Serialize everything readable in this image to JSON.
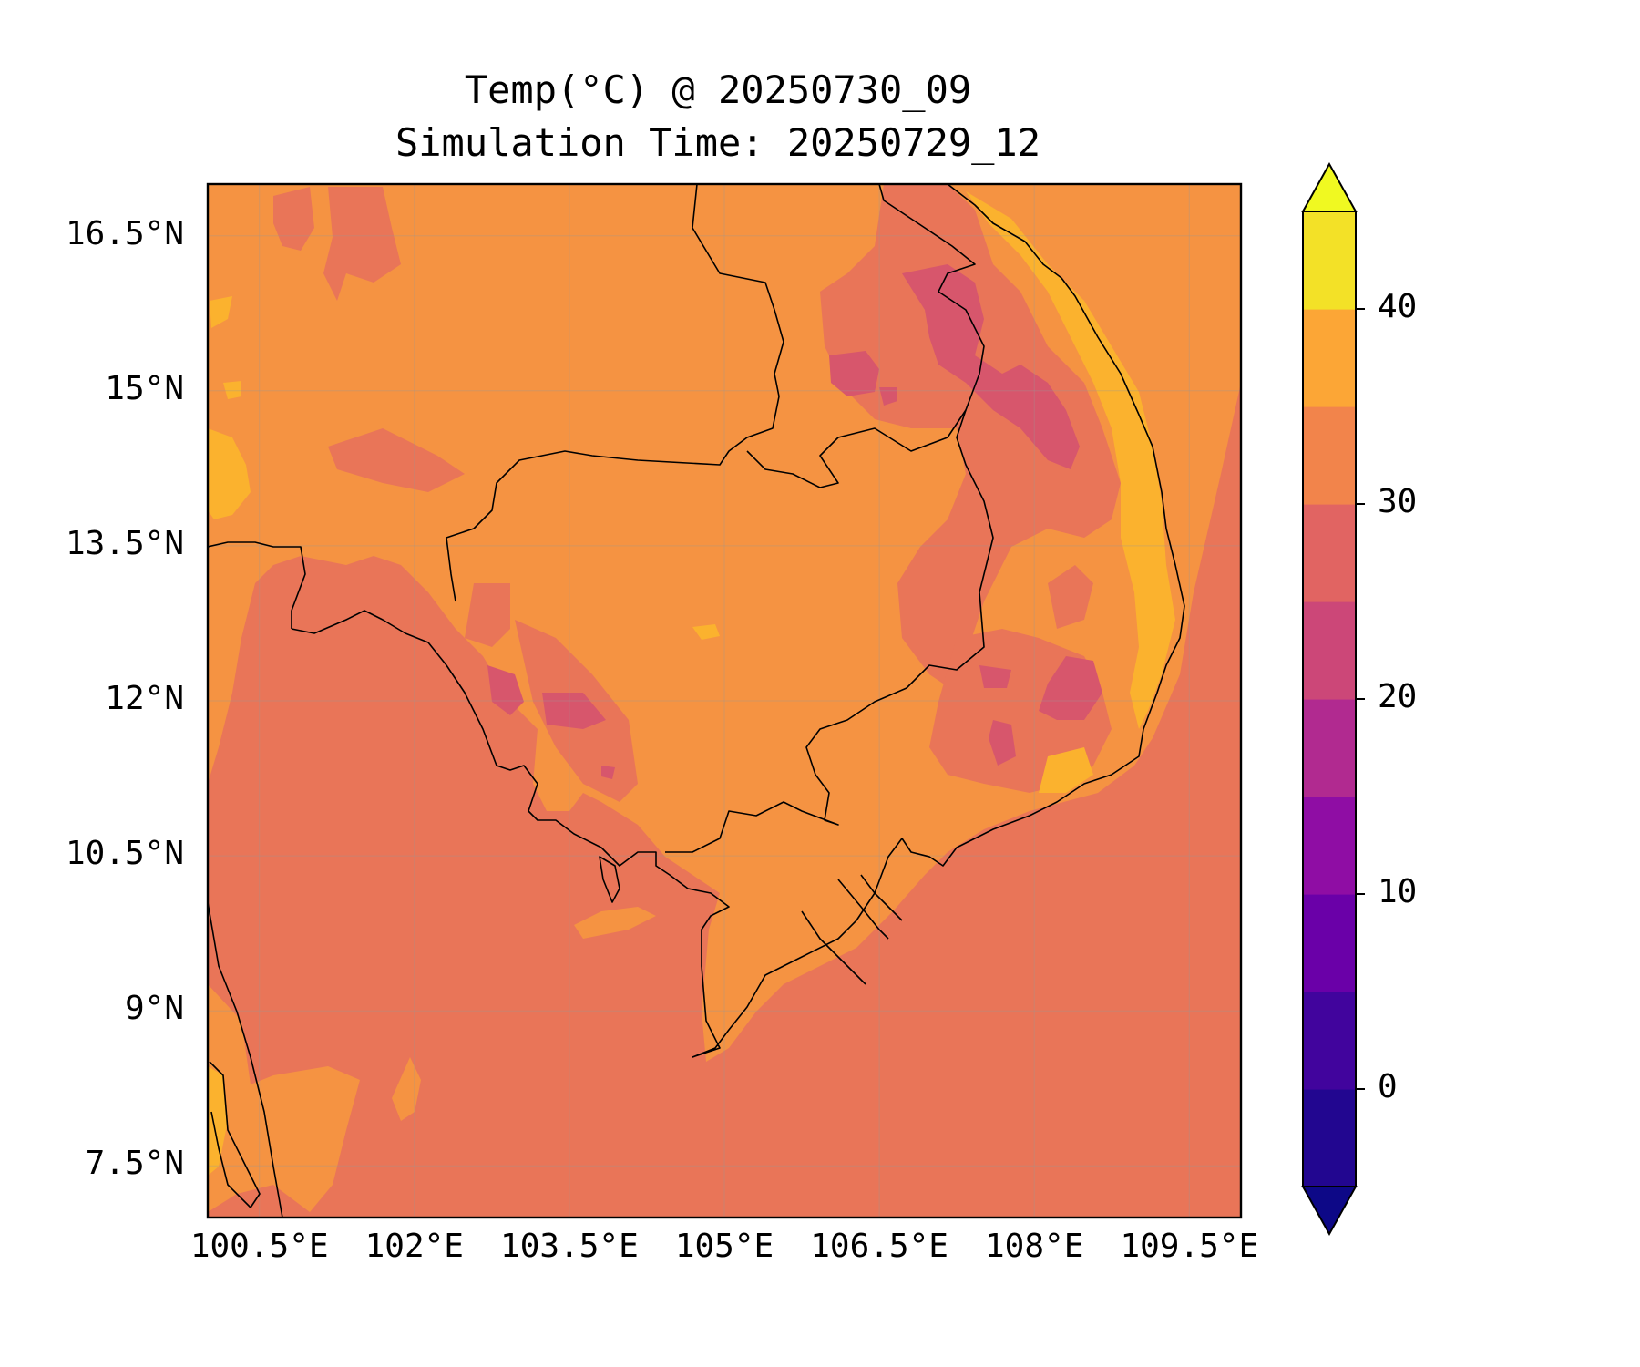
{
  "title": "Temp(°C) @ 20250730_09",
  "subtitle": "Simulation Time: 20250729_12",
  "map": {
    "lon_range": [
      100.0,
      110.0
    ],
    "lat_range": [
      7.0,
      17.0
    ],
    "lat_ticks": [
      {
        "value": 16.5,
        "label": "16.5°N"
      },
      {
        "value": 15.0,
        "label": "15°N"
      },
      {
        "value": 13.5,
        "label": "13.5°N"
      },
      {
        "value": 12.0,
        "label": "12°N"
      },
      {
        "value": 10.5,
        "label": "10.5°N"
      },
      {
        "value": 9.0,
        "label": "9°N"
      },
      {
        "value": 7.5,
        "label": "7.5°N"
      }
    ],
    "lon_ticks": [
      {
        "value": 100.5,
        "label": "100.5°E"
      },
      {
        "value": 102.0,
        "label": "102°E"
      },
      {
        "value": 103.5,
        "label": "103.5°E"
      },
      {
        "value": 105.0,
        "label": "105°E"
      },
      {
        "value": 106.5,
        "label": "106.5°E"
      },
      {
        "value": 108.0,
        "label": "108°E"
      },
      {
        "value": 109.5,
        "label": "109.5°E"
      }
    ],
    "grid": true,
    "field_colors": {
      "sea_25_30": "#e97558",
      "land_30_35": "#f59342",
      "hot_35_40": "#fbb22e",
      "cool_20_25": "#d7566c",
      "cold_15_20": "#c13a83"
    }
  },
  "colorbar": {
    "min": -5,
    "max": 45,
    "extend": "both",
    "ticks": [
      {
        "value": 0,
        "label": "0"
      },
      {
        "value": 10,
        "label": "10"
      },
      {
        "value": 20,
        "label": "20"
      },
      {
        "value": 30,
        "label": "30"
      },
      {
        "value": 40,
        "label": "40"
      }
    ],
    "under_color": "#0d0887",
    "over_color": "#f0f921",
    "bins": [
      {
        "from": -5,
        "to": 0,
        "color": "#220690"
      },
      {
        "from": 0,
        "to": 5,
        "color": "#41049d"
      },
      {
        "from": 5,
        "to": 10,
        "color": "#6a00a8"
      },
      {
        "from": 10,
        "to": 15,
        "color": "#8f0da4"
      },
      {
        "from": 15,
        "to": 20,
        "color": "#b12a90"
      },
      {
        "from": 20,
        "to": 25,
        "color": "#cc4778"
      },
      {
        "from": 25,
        "to": 30,
        "color": "#e16462"
      },
      {
        "from": 30,
        "to": 35,
        "color": "#f2844b"
      },
      {
        "from": 35,
        "to": 40,
        "color": "#fca636"
      },
      {
        "from": 40,
        "to": 45,
        "color": "#f3e127"
      }
    ]
  }
}
